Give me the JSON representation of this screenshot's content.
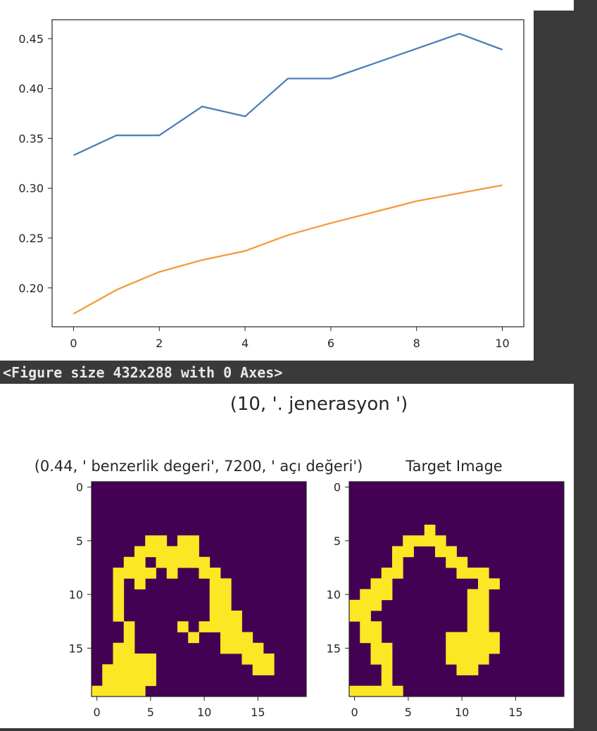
{
  "stdout_text": "<Figure size 432x288 with 0 Axes>",
  "chart_data": [
    {
      "type": "line",
      "x": [
        0,
        1,
        2,
        3,
        4,
        5,
        6,
        7,
        8,
        9,
        10
      ],
      "series": [
        {
          "color": "#4c7fba",
          "values": [
            0.333,
            0.353,
            0.353,
            0.382,
            0.372,
            0.41,
            0.41,
            0.425,
            0.44,
            0.455,
            0.439
          ]
        },
        {
          "color": "#f39a3c",
          "values": [
            0.174,
            0.198,
            0.216,
            0.228,
            0.237,
            0.253,
            0.265,
            0.276,
            0.287,
            0.295,
            0.303
          ]
        }
      ],
      "xticks": [
        "0",
        "2",
        "4",
        "6",
        "8",
        "10"
      ],
      "yticks": [
        "0.20",
        "0.25",
        "0.30",
        "0.35",
        "0.40",
        "0.45"
      ],
      "xlim": [
        -0.5,
        10.5
      ],
      "ylim": [
        0.161,
        0.469
      ],
      "grid": false
    },
    {
      "type": "heatmap",
      "suptitle": "(10, '. jenerasyon ')",
      "panels": [
        {
          "title": "(0.44, ' benzerlik degeri', 7200, ' açı değeri')",
          "rows": 20,
          "cols": 20,
          "background": "#440154",
          "foreground": "#fde725",
          "xticks": [
            "0",
            "5",
            "10",
            "15"
          ],
          "yticks": [
            "0",
            "5",
            "10",
            "15"
          ],
          "cells": [
            [
              5,
              5
            ],
            [
              6,
              5
            ],
            [
              8,
              5
            ],
            [
              9,
              5
            ],
            [
              4,
              6
            ],
            [
              5,
              6
            ],
            [
              6,
              6
            ],
            [
              7,
              6
            ],
            [
              8,
              6
            ],
            [
              9,
              6
            ],
            [
              3,
              7
            ],
            [
              4,
              7
            ],
            [
              6,
              7
            ],
            [
              7,
              7
            ],
            [
              8,
              7
            ],
            [
              9,
              7
            ],
            [
              10,
              7
            ],
            [
              2,
              8
            ],
            [
              3,
              8
            ],
            [
              4,
              8
            ],
            [
              5,
              8
            ],
            [
              7,
              8
            ],
            [
              10,
              8
            ],
            [
              11,
              8
            ],
            [
              2,
              9
            ],
            [
              4,
              9
            ],
            [
              11,
              9
            ],
            [
              12,
              9
            ],
            [
              2,
              10
            ],
            [
              11,
              10
            ],
            [
              12,
              10
            ],
            [
              2,
              11
            ],
            [
              11,
              11
            ],
            [
              12,
              11
            ],
            [
              2,
              12
            ],
            [
              11,
              12
            ],
            [
              12,
              12
            ],
            [
              13,
              12
            ],
            [
              3,
              13
            ],
            [
              8,
              13
            ],
            [
              10,
              13
            ],
            [
              11,
              13
            ],
            [
              12,
              13
            ],
            [
              13,
              13
            ],
            [
              3,
              14
            ],
            [
              9,
              14
            ],
            [
              12,
              14
            ],
            [
              13,
              14
            ],
            [
              14,
              14
            ],
            [
              2,
              15
            ],
            [
              3,
              15
            ],
            [
              12,
              15
            ],
            [
              13,
              15
            ],
            [
              14,
              15
            ],
            [
              15,
              15
            ],
            [
              2,
              16
            ],
            [
              3,
              16
            ],
            [
              4,
              16
            ],
            [
              5,
              16
            ],
            [
              14,
              16
            ],
            [
              15,
              16
            ],
            [
              16,
              16
            ],
            [
              1,
              17
            ],
            [
              2,
              17
            ],
            [
              3,
              17
            ],
            [
              4,
              17
            ],
            [
              5,
              17
            ],
            [
              15,
              17
            ],
            [
              16,
              17
            ],
            [
              1,
              18
            ],
            [
              2,
              18
            ],
            [
              3,
              18
            ],
            [
              4,
              18
            ],
            [
              5,
              18
            ],
            [
              0,
              19
            ],
            [
              1,
              19
            ],
            [
              2,
              19
            ],
            [
              3,
              19
            ],
            [
              4,
              19
            ]
          ]
        },
        {
          "title": "Target Image",
          "rows": 20,
          "cols": 20,
          "background": "#440154",
          "foreground": "#fde725",
          "xticks": [
            "0",
            "5",
            "10",
            "15"
          ],
          "yticks": [
            "0",
            "5",
            "10",
            "15"
          ],
          "cells": [
            [
              7,
              4
            ],
            [
              5,
              5
            ],
            [
              6,
              5
            ],
            [
              7,
              5
            ],
            [
              8,
              5
            ],
            [
              4,
              6
            ],
            [
              5,
              6
            ],
            [
              8,
              6
            ],
            [
              9,
              6
            ],
            [
              4,
              7
            ],
            [
              9,
              7
            ],
            [
              10,
              7
            ],
            [
              3,
              8
            ],
            [
              4,
              8
            ],
            [
              10,
              8
            ],
            [
              11,
              8
            ],
            [
              12,
              8
            ],
            [
              2,
              9
            ],
            [
              3,
              9
            ],
            [
              12,
              9
            ],
            [
              13,
              9
            ],
            [
              1,
              10
            ],
            [
              2,
              10
            ],
            [
              3,
              10
            ],
            [
              11,
              10
            ],
            [
              12,
              10
            ],
            [
              0,
              11
            ],
            [
              1,
              11
            ],
            [
              2,
              11
            ],
            [
              11,
              11
            ],
            [
              12,
              11
            ],
            [
              0,
              12
            ],
            [
              1,
              12
            ],
            [
              11,
              12
            ],
            [
              12,
              12
            ],
            [
              1,
              13
            ],
            [
              2,
              13
            ],
            [
              11,
              13
            ],
            [
              12,
              13
            ],
            [
              1,
              14
            ],
            [
              2,
              14
            ],
            [
              9,
              14
            ],
            [
              10,
              14
            ],
            [
              11,
              14
            ],
            [
              12,
              14
            ],
            [
              13,
              14
            ],
            [
              2,
              15
            ],
            [
              3,
              15
            ],
            [
              9,
              15
            ],
            [
              10,
              15
            ],
            [
              11,
              15
            ],
            [
              12,
              15
            ],
            [
              13,
              15
            ],
            [
              2,
              16
            ],
            [
              3,
              16
            ],
            [
              9,
              16
            ],
            [
              10,
              16
            ],
            [
              11,
              16
            ],
            [
              12,
              16
            ],
            [
              3,
              17
            ],
            [
              10,
              17
            ],
            [
              11,
              17
            ],
            [
              3,
              18
            ],
            [
              0,
              19
            ],
            [
              1,
              19
            ],
            [
              2,
              19
            ],
            [
              3,
              19
            ],
            [
              4,
              19
            ]
          ]
        }
      ]
    }
  ]
}
